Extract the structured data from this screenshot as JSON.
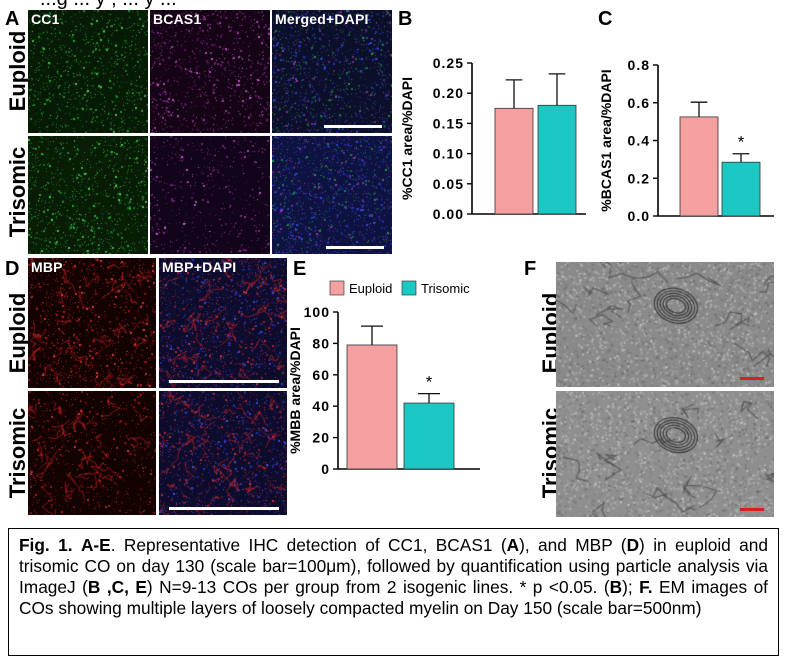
{
  "figure": {
    "top_text": "...g  ... y  , ... y ...",
    "panels": {
      "A": "A",
      "B": "B",
      "C": "C",
      "D": "D",
      "E": "E",
      "F": "F"
    },
    "rows": {
      "euploid": "Euploid",
      "trisomic": "Trisomic"
    },
    "micro_labels": {
      "cc1": "CC1",
      "bcas1": "BCAS1",
      "merged": "Merged+DAPI",
      "mbp": "MBP",
      "mbp_dapi": "MBP+DAPI"
    },
    "legend": {
      "euploid": "Euploid",
      "trisomic": "Trisomic"
    },
    "colors": {
      "euploid": "#f4a0a0",
      "trisomic": "#1cc8c4",
      "green": "#22c03a",
      "magenta": "#b62cb4",
      "red": "#e02020",
      "blue": "#2d3bd6"
    },
    "significance": "*"
  },
  "chart_data": [
    {
      "id": "B",
      "type": "bar",
      "categories": [
        "Euploid",
        "Trisomic"
      ],
      "values": [
        0.175,
        0.18
      ],
      "errors": [
        0.047,
        0.052
      ],
      "ylabel": "%CC1 area/%DAPI",
      "ylim": [
        0,
        0.25
      ],
      "yticks": [
        "0.00",
        "0.05",
        "0.10",
        "0.15",
        "0.20",
        "0.25"
      ],
      "significance": ""
    },
    {
      "id": "C",
      "type": "bar",
      "categories": [
        "Euploid",
        "Trisomic"
      ],
      "values": [
        0.525,
        0.285
      ],
      "errors": [
        0.078,
        0.045
      ],
      "ylabel": "%BCAS1 area/%DAPI",
      "ylim": [
        0,
        0.8
      ],
      "yticks": [
        "0.0",
        "0.2",
        "0.4",
        "0.6",
        "0.8"
      ],
      "significance": "*"
    },
    {
      "id": "E",
      "type": "bar",
      "categories": [
        "Euploid",
        "Trisomic"
      ],
      "values": [
        79,
        42
      ],
      "errors": [
        12,
        6
      ],
      "ylabel": "%MBB area/%DAPI",
      "ylim": [
        0,
        100
      ],
      "yticks": [
        "0",
        "20",
        "40",
        "60",
        "80",
        "100"
      ],
      "significance": "*"
    }
  ],
  "caption": {
    "fig": "Fig. 1.",
    "ae": "A-E",
    "t1": ". Representative IHC detection of CC1, BCAS1 (",
    "a": "A",
    "t2": "), and MBP (",
    "d": "D",
    "t3": ") in euploid and trisomic CO on day 130 (scale bar=100μm), followed by quantification using particle analysis via ImageJ (",
    "bce": "B ,C, E",
    "t4": ") N=9-13 COs per group from 2 isogenic lines. * p <0.05. (",
    "b": "B",
    "t5": "); ",
    "f": "F.",
    "t6": " EM images of COs showing multiple layers of loosely compacted myelin on Day 150 (scale bar=500nm)"
  }
}
